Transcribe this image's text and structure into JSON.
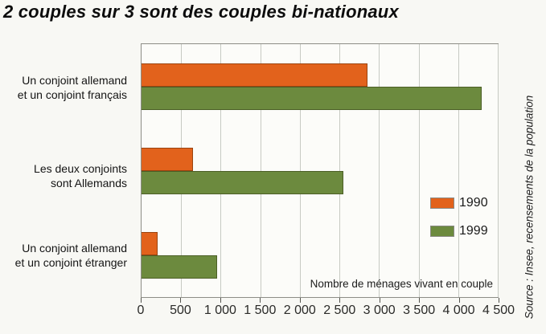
{
  "title": "2 couples sur 3 sont des couples bi-nationaux",
  "source_note": "Source : Insee, recensements de la population",
  "colors": {
    "bar_1990": "#e2621c",
    "bar_1990_border": "#9a4410",
    "bar_1999": "#6c8a3e",
    "bar_1999_border": "#4c5f26",
    "gridline": "#c7cac3",
    "background": "#f8f8f4"
  },
  "chart_data": {
    "type": "bar",
    "orientation": "horizontal",
    "title": "2 couples sur 3 sont des couples bi-nationaux",
    "xlabel": "Nombre de ménages vivant en couple",
    "xlim": [
      0,
      4500
    ],
    "xticks": [
      0,
      500,
      1000,
      1500,
      2000,
      2500,
      3000,
      3500,
      4000,
      4500
    ],
    "xtick_labels": [
      "0",
      "500",
      "1 000",
      "1 500",
      "2 000",
      "2 500",
      "3 000",
      "3 500",
      "4 000",
      "4 500"
    ],
    "grid": true,
    "legend_position": "inside right",
    "categories": [
      [
        "Un conjoint allemand",
        "et un conjoint français"
      ],
      [
        "Les deux conjoints",
        "sont Allemands"
      ],
      [
        "Un conjoint allemand",
        "et un conjoint étranger"
      ]
    ],
    "series": [
      {
        "name": "1990",
        "color": "#e2621c",
        "border": "#9a4410",
        "values": [
          2850,
          650,
          200
        ]
      },
      {
        "name": "1999",
        "color": "#6c8a3e",
        "border": "#4c5f26",
        "values": [
          4300,
          2550,
          950
        ]
      }
    ]
  }
}
